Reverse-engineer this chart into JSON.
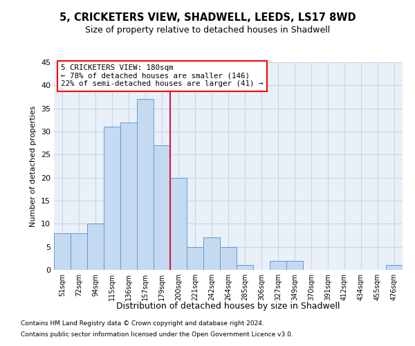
{
  "title1": "5, CRICKETERS VIEW, SHADWELL, LEEDS, LS17 8WD",
  "title2": "Size of property relative to detached houses in Shadwell",
  "xlabel": "Distribution of detached houses by size in Shadwell",
  "ylabel": "Number of detached properties",
  "categories": [
    "51sqm",
    "72sqm",
    "94sqm",
    "115sqm",
    "136sqm",
    "157sqm",
    "179sqm",
    "200sqm",
    "221sqm",
    "242sqm",
    "264sqm",
    "285sqm",
    "306sqm",
    "327sqm",
    "349sqm",
    "370sqm",
    "391sqm",
    "412sqm",
    "434sqm",
    "455sqm",
    "476sqm"
  ],
  "values": [
    8,
    8,
    10,
    31,
    32,
    37,
    27,
    20,
    5,
    7,
    5,
    1,
    0,
    2,
    2,
    0,
    0,
    0,
    0,
    0,
    1
  ],
  "bar_color": "#c5d9f0",
  "bar_edge_color": "#5b9bd5",
  "red_line_index": 6,
  "annotation_line1": "5 CRICKETERS VIEW: 180sqm",
  "annotation_line2": "← 78% of detached houses are smaller (146)",
  "annotation_line3": "22% of semi-detached houses are larger (41) →",
  "ylim": [
    0,
    45
  ],
  "yticks": [
    0,
    5,
    10,
    15,
    20,
    25,
    30,
    35,
    40,
    45
  ],
  "background_color": "#ffffff",
  "plot_bg_color": "#eaf0f8",
  "grid_color": "#c8d4e8",
  "footnote1": "Contains HM Land Registry data © Crown copyright and database right 2024.",
  "footnote2": "Contains public sector information licensed under the Open Government Licence v3.0."
}
